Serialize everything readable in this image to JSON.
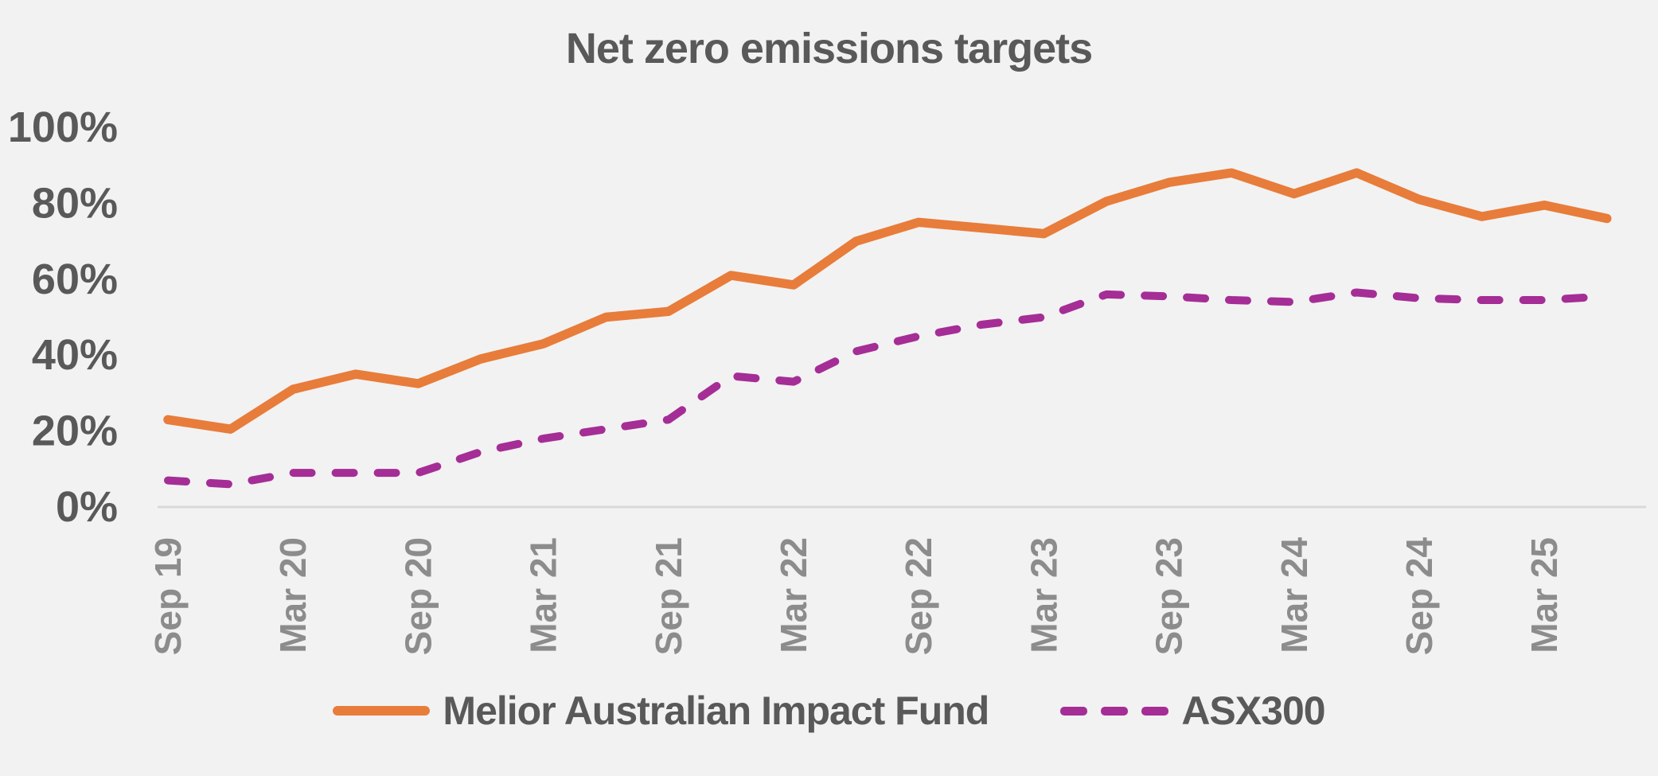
{
  "chart_data": {
    "type": "line",
    "title": "Net zero emissions targets",
    "xlabel": "",
    "ylabel": "",
    "ylim": [
      0,
      100
    ],
    "yticks": [
      0,
      20,
      40,
      60,
      80,
      100
    ],
    "ytick_suffix": "%",
    "grid": false,
    "legend_position": "bottom",
    "x": [
      "Sep 19",
      "Dec 19",
      "Mar 20",
      "Jun 20",
      "Sep 20",
      "Dec 20",
      "Mar 21",
      "Jun 21",
      "Sep 21",
      "Dec 21",
      "Mar 22",
      "Jun 22",
      "Sep 22",
      "Dec 22",
      "Mar 23",
      "Jun 23",
      "Sep 23",
      "Dec 23",
      "Mar 24",
      "Jun 24",
      "Sep 24",
      "Dec 24",
      "Mar 25",
      "Jun 25"
    ],
    "x_tick_labels": [
      "Sep 19",
      "Mar 20",
      "Sep 20",
      "Mar 21",
      "Sep 21",
      "Mar 22",
      "Sep 22",
      "Mar 23",
      "Sep 23",
      "Mar 24",
      "Sep 24",
      "Mar 25"
    ],
    "series": [
      {
        "name": "Melior Australian Impact Fund",
        "style": "solid",
        "color": "#e87c3a",
        "values": [
          23,
          20.5,
          31,
          35,
          32.5,
          39,
          43,
          50,
          51.5,
          61,
          58.5,
          70,
          75,
          73.5,
          72,
          80.5,
          85.5,
          88,
          82.5,
          88,
          81,
          76.5,
          79.5,
          76
        ]
      },
      {
        "name": "ASX300",
        "style": "dashed",
        "color": "#a52d96",
        "values": [
          7,
          6,
          9,
          9,
          9,
          14.5,
          18,
          20.5,
          23,
          34.5,
          33,
          41,
          45,
          48,
          50,
          56,
          55.5,
          54.5,
          54,
          56.5,
          55,
          54.5,
          54.5,
          55.5
        ]
      }
    ]
  },
  "colors": {
    "background": "#f2f2f2",
    "title_text": "#595959",
    "y_tick_text": "#595959",
    "x_tick_text": "#8c8c8c",
    "axis_line": "#d9d9d9",
    "legend_text": "#595959"
  }
}
